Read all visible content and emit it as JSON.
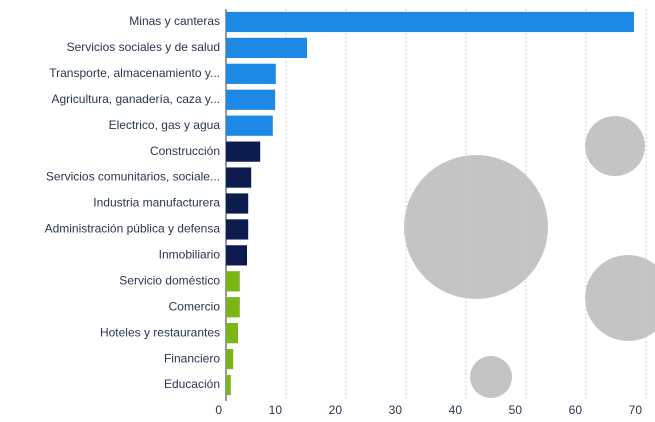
{
  "chart_data": {
    "type": "bar",
    "orientation": "horizontal",
    "categories": [
      "Minas y canteras",
      "Servicios sociales y de salud",
      "Transporte, almacenamiento y...",
      "Agricultura, ganadería, caza y...",
      "Electrico, gas y agua",
      "Construcción",
      "Servicios comunitarios, sociale...",
      "Industria manufacturera",
      "Administración pública y defensa",
      "Inmobiliario",
      "Servicio doméstico",
      "Comercio",
      "Hoteles y restaurantes",
      "Financiero",
      "Educación"
    ],
    "values": [
      68,
      13.5,
      8.3,
      8.2,
      7.8,
      5.7,
      4.2,
      3.7,
      3.7,
      3.5,
      2.3,
      2.3,
      2.0,
      1.2,
      0.8
    ],
    "colors": [
      "#1e88e5",
      "#1e88e5",
      "#1e88e5",
      "#1e88e5",
      "#1e88e5",
      "#0d1b4f",
      "#0d1b4f",
      "#0d1b4f",
      "#0d1b4f",
      "#0d1b4f",
      "#7cb518",
      "#7cb518",
      "#7cb518",
      "#7cb518",
      "#7cb518"
    ],
    "xlim": [
      0,
      71.5
    ],
    "xticks": [
      0,
      10,
      20,
      30,
      40,
      50,
      60,
      70
    ],
    "grid": true
  }
}
